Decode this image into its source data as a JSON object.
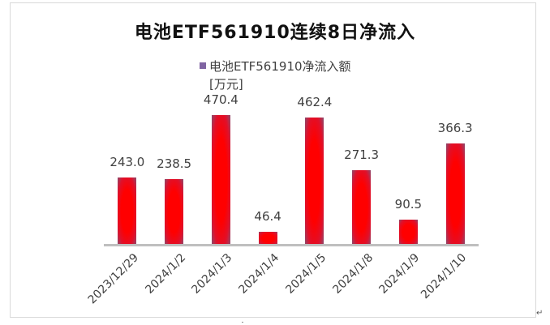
{
  "chart_data": {
    "type": "bar",
    "title": "电池ETF561910连续8日净流入",
    "legend": [
      "电池ETF561910净流入额"
    ],
    "legend_position": "top",
    "unit_label": "[万元]",
    "xlabel": "",
    "ylabel": "万元",
    "categories": [
      "2023/12/29",
      "2024/1/2",
      "2024/1/3",
      "2024/1/4",
      "2024/1/5",
      "2024/1/8",
      "2024/1/9",
      "2024/1/10"
    ],
    "series": [
      {
        "name": "电池ETF561910净流入额",
        "values": [
          243.0,
          238.5,
          470.4,
          46.4,
          462.4,
          271.3,
          90.5,
          366.3
        ],
        "labels": [
          "243.0",
          "238.5",
          "470.4",
          "46.4",
          "462.4",
          "271.3",
          "90.5",
          "366.3"
        ],
        "color": "#ff0000"
      }
    ],
    "ylim": [
      0,
      500
    ],
    "grid": false,
    "y_axis_visible": false,
    "data_labels": true
  },
  "colors": {
    "bar": "#ff0000",
    "bar_edge": "#8b4a6e",
    "legend_marker": "#8064a2",
    "axis": "#bfbfbf",
    "text": "#404040"
  }
}
